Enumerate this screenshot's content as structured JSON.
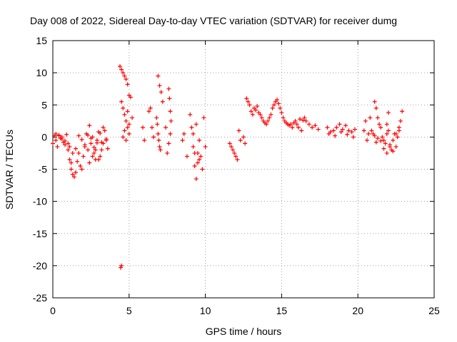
{
  "chart_data": {
    "type": "scatter",
    "title": "Day 008 of 2022, Sidereal Day-to-day VTEC variation (SDTVAR) for receiver dumg",
    "xlabel": "GPS time / hours",
    "ylabel": "SDTVAR / TECUs",
    "xlim": [
      0,
      25
    ],
    "ylim": [
      -25,
      15
    ],
    "xticks": [
      0,
      5,
      10,
      15,
      20,
      25
    ],
    "yticks": [
      -25,
      -20,
      -15,
      -10,
      -5,
      0,
      5,
      10,
      15
    ],
    "grid": true,
    "marker": "+",
    "color": "#ff0000",
    "series": [
      {
        "name": "SDTVAR",
        "x": [
          0.0,
          0.1,
          0.2,
          0.3,
          0.4,
          0.5,
          0.6,
          0.7,
          0.8,
          0.9,
          1.0,
          1.1,
          1.2,
          1.3,
          1.4,
          1.5,
          1.6,
          1.7,
          1.8,
          1.9,
          2.0,
          2.1,
          2.2,
          2.3,
          2.4,
          2.5,
          2.6,
          2.7,
          2.8,
          2.9,
          3.0,
          3.1,
          3.2,
          3.3,
          3.4,
          3.5,
          3.6,
          0.2,
          0.4,
          0.6,
          0.8,
          1.0,
          1.2,
          1.1,
          1.3,
          1.5,
          1.7,
          1.9,
          2.1,
          2.3,
          2.5,
          2.7,
          2.9,
          3.1,
          3.3,
          3.5,
          2.4,
          2.6,
          2.8,
          3.0,
          3.2,
          4.4,
          4.5,
          4.6,
          4.7,
          4.8,
          4.9,
          5.0,
          5.1,
          4.5,
          4.6,
          4.7,
          4.8,
          4.9,
          5.0,
          4.6,
          4.8,
          5.0,
          5.2,
          4.5,
          4.7,
          4.9,
          4.45,
          5.9,
          6.0,
          6.3,
          6.4,
          6.5,
          6.6,
          6.9,
          7.0,
          7.1,
          7.2,
          6.8,
          6.85,
          6.9,
          6.95,
          7.0,
          7.05,
          7.6,
          7.65,
          7.7,
          7.75,
          7.7,
          7.6,
          7.5,
          7.4,
          8.5,
          8.6,
          8.8,
          9.0,
          9.1,
          9.2,
          9.3,
          9.4,
          9.5,
          9.6,
          9.7,
          9.8,
          9.9,
          10.0,
          9.4,
          9.5,
          9.3,
          9.2,
          9.6,
          11.6,
          11.7,
          11.8,
          11.9,
          12.0,
          12.1,
          12.2,
          12.3,
          12.5,
          12.6,
          12.7,
          12.8,
          12.9,
          13.0,
          13.1,
          13.2,
          13.3,
          13.4,
          13.5,
          13.6,
          13.7,
          13.8,
          13.9,
          14.0,
          14.1,
          14.2,
          14.3,
          14.4,
          14.5,
          14.6,
          14.7,
          14.8,
          14.9,
          15.0,
          15.1,
          15.2,
          15.3,
          15.4,
          15.5,
          15.6,
          15.7,
          15.8,
          15.9,
          16.0,
          16.1,
          16.2,
          16.3,
          16.4,
          16.5,
          16.6,
          16.8,
          17.0,
          17.2,
          17.4,
          18.0,
          18.2,
          18.4,
          18.6,
          18.8,
          19.0,
          19.2,
          19.4,
          19.6,
          19.8,
          18.1,
          18.5,
          18.9,
          19.3,
          19.7,
          20.4,
          20.5,
          20.6,
          20.7,
          20.8,
          20.9,
          21.0,
          21.1,
          21.2,
          21.3,
          21.4,
          21.5,
          21.6,
          21.7,
          21.8,
          21.9,
          22.0,
          22.1,
          22.2,
          22.3,
          22.4,
          22.5,
          22.6,
          22.7,
          22.8,
          22.9,
          21.1,
          21.2,
          21.3,
          21.5,
          21.7,
          21.9,
          22.1,
          22.3,
          22.5,
          22.7,
          22.0,
          21.9
        ],
        "y": [
          -1.0,
          0.2,
          -0.5,
          -1.5,
          0.3,
          -0.2,
          0.0,
          -0.8,
          -1.2,
          0.4,
          -1.0,
          -3.5,
          -5.0,
          -5.8,
          -6.2,
          -5.5,
          -3.8,
          -2.5,
          -4.5,
          -5.0,
          -3.0,
          -1.5,
          0.5,
          -2.0,
          1.8,
          -1.0,
          0.0,
          -2.5,
          -3.5,
          -0.5,
          0.8,
          -3.0,
          -2.0,
          -1.0,
          1.0,
          -0.5,
          -1.8,
          0.5,
          0.2,
          -0.3,
          -0.6,
          -2.0,
          -4.0,
          -1.5,
          -2.5,
          -1.8,
          0.2,
          -0.4,
          -1.2,
          0.3,
          -0.2,
          -1.6,
          -0.9,
          0.6,
          1.5,
          -0.3,
          -4.0,
          -3.0,
          -2.0,
          -3.5,
          -0.8,
          11.0,
          10.5,
          10.0,
          9.5,
          9.0,
          8.2,
          6.5,
          6.2,
          5.5,
          4.5,
          3.5,
          2.5,
          1.5,
          0.5,
          0.0,
          -0.5,
          2.0,
          3.0,
          -20.0,
          1.0,
          4.0,
          -20.3,
          1.5,
          -0.5,
          4.0,
          4.5,
          1.5,
          0.0,
          9.5,
          8.0,
          7.0,
          5.5,
          3.0,
          2.0,
          0.5,
          -0.5,
          -1.5,
          -2.0,
          7.5,
          6.0,
          4.0,
          2.5,
          0.5,
          -1.0,
          -2.5,
          1.5,
          -0.5,
          0.5,
          -3.0,
          3.5,
          1.5,
          -1.5,
          -4.5,
          -6.5,
          -2.5,
          -0.5,
          -3.0,
          -5.0,
          3.0,
          -1.5,
          2.0,
          -4.0,
          -2.5,
          0.5,
          -3.5,
          -1.0,
          -1.5,
          -2.0,
          -2.5,
          -3.0,
          -3.5,
          1.0,
          -0.5,
          0.0,
          -1.0,
          6.0,
          5.5,
          5.0,
          4.0,
          3.5,
          4.5,
          4.2,
          4.8,
          3.8,
          3.5,
          3.0,
          2.5,
          2.2,
          2.0,
          2.5,
          3.0,
          3.5,
          4.5,
          5.0,
          5.5,
          5.8,
          5.2,
          4.5,
          3.8,
          3.0,
          2.5,
          2.2,
          2.0,
          1.8,
          2.0,
          1.5,
          2.2,
          2.5,
          2.0,
          1.5,
          2.8,
          1.0,
          2.6,
          3.0,
          2.5,
          2.0,
          1.5,
          1.8,
          1.2,
          1.5,
          0.8,
          1.0,
          1.5,
          2.0,
          1.2,
          1.8,
          1.0,
          0.8,
          1.2,
          0.5,
          0.2,
          0.8,
          0.4,
          0.0,
          1.0,
          2.5,
          -0.5,
          0.5,
          3.0,
          1.0,
          0.5,
          5.5,
          4.5,
          3.0,
          2.0,
          1.5,
          0.0,
          -0.5,
          -1.0,
          0.5,
          1.0,
          -1.5,
          -2.0,
          -0.5,
          0.5,
          -1.5,
          0.0,
          1.0,
          2.5,
          4.0,
          0.2,
          -0.8,
          -0.2,
          -0.6,
          -1.8,
          -2.5,
          -1.2,
          -2.2,
          0.5,
          1.5,
          3.8,
          2.0
        ]
      }
    ]
  }
}
